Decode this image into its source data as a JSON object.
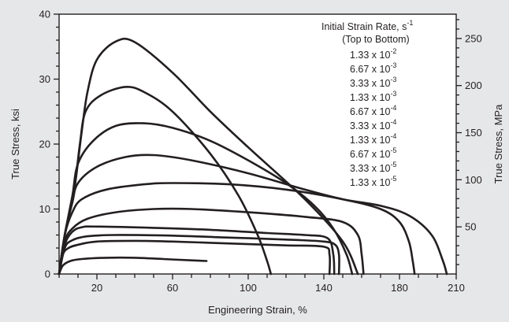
{
  "chart_data": {
    "type": "line",
    "title": "",
    "xlabel": "Engineering Strain, %",
    "ylabel": "True Stress, ksi",
    "ylabel_right": "True Stress, MPa",
    "xlim": [
      0,
      210
    ],
    "ylim": [
      0,
      40
    ],
    "xticks": [
      20,
      60,
      100,
      140,
      180,
      210
    ],
    "yticks": [
      0,
      10,
      20,
      30,
      40
    ],
    "yticks_right": [
      50,
      100,
      150,
      200,
      250
    ],
    "mpa_per_ksi": 6.895,
    "grid": false,
    "legend": {
      "position": "top-right",
      "title_main": "Initial Strain Rate, s",
      "title_sup": "-1",
      "subtitle": "(Top to Bottom)",
      "entries": [
        {
          "mantissa": "1.33 x 10",
          "exponent": "-2"
        },
        {
          "mantissa": "6.67 x 10",
          "exponent": "-3"
        },
        {
          "mantissa": "3.33 x 10",
          "exponent": "-3"
        },
        {
          "mantissa": "1.33 x 10",
          "exponent": "-3"
        },
        {
          "mantissa": "6.67 x 10",
          "exponent": "-4"
        },
        {
          "mantissa": "3.33 x 10",
          "exponent": "-4"
        },
        {
          "mantissa": "1.33 x 10",
          "exponent": "-4"
        },
        {
          "mantissa": "6.67 x 10",
          "exponent": "-5"
        },
        {
          "mantissa": "3.33 x 10",
          "exponent": "-5"
        },
        {
          "mantissa": "1.33 x 10",
          "exponent": "-5"
        }
      ]
    },
    "series": [
      {
        "points": [
          [
            0,
            0
          ],
          [
            3,
            6
          ],
          [
            8,
            13
          ],
          [
            12,
            22
          ],
          [
            15,
            28
          ],
          [
            20,
            33
          ],
          [
            30,
            35.8
          ],
          [
            40,
            35.7
          ],
          [
            60,
            31
          ],
          [
            80,
            25
          ],
          [
            100,
            19.5
          ],
          [
            130,
            11.5
          ],
          [
            150,
            5
          ],
          [
            158,
            0
          ]
        ]
      },
      {
        "points": [
          [
            0,
            0
          ],
          [
            3,
            6
          ],
          [
            8,
            13
          ],
          [
            11,
            20
          ],
          [
            14,
            25
          ],
          [
            22,
            27.5
          ],
          [
            35,
            28.8
          ],
          [
            45,
            28
          ],
          [
            60,
            25
          ],
          [
            80,
            18.5
          ],
          [
            95,
            12
          ],
          [
            105,
            6
          ],
          [
            110,
            2
          ],
          [
            112,
            0
          ]
        ]
      },
      {
        "points": [
          [
            0,
            0
          ],
          [
            3,
            6
          ],
          [
            7,
            12
          ],
          [
            10,
            17
          ],
          [
            18,
            20.5
          ],
          [
            30,
            22.8
          ],
          [
            45,
            23.2
          ],
          [
            60,
            22.5
          ],
          [
            80,
            20.5
          ],
          [
            100,
            17.5
          ],
          [
            120,
            14
          ],
          [
            135,
            10.5
          ],
          [
            145,
            7
          ],
          [
            152,
            3
          ],
          [
            155,
            0
          ]
        ]
      },
      {
        "points": [
          [
            0,
            0
          ],
          [
            3,
            6
          ],
          [
            7,
            11
          ],
          [
            10,
            14
          ],
          [
            20,
            16.5
          ],
          [
            35,
            18
          ],
          [
            50,
            18.3
          ],
          [
            70,
            17.5
          ],
          [
            100,
            15.5
          ],
          [
            130,
            13
          ],
          [
            150,
            11.5
          ],
          [
            170,
            10.5
          ],
          [
            185,
            9
          ],
          [
            197,
            6
          ],
          [
            203,
            2
          ],
          [
            205,
            0
          ]
        ]
      },
      {
        "points": [
          [
            0,
            0
          ],
          [
            3,
            6
          ],
          [
            7,
            9.5
          ],
          [
            12,
            11.5
          ],
          [
            25,
            13
          ],
          [
            45,
            13.8
          ],
          [
            60,
            14
          ],
          [
            90,
            13.8
          ],
          [
            120,
            13
          ],
          [
            150,
            11.5
          ],
          [
            170,
            10
          ],
          [
            180,
            8
          ],
          [
            185,
            5
          ],
          [
            187,
            2
          ],
          [
            188,
            0
          ]
        ]
      },
      {
        "points": [
          [
            0,
            0
          ],
          [
            3,
            5
          ],
          [
            7,
            7
          ],
          [
            15,
            8.5
          ],
          [
            30,
            9.5
          ],
          [
            50,
            10
          ],
          [
            70,
            10
          ],
          [
            100,
            9.5
          ],
          [
            130,
            8.8
          ],
          [
            150,
            8
          ],
          [
            158,
            6
          ],
          [
            160,
            3
          ],
          [
            161,
            0
          ]
        ]
      },
      {
        "points": [
          [
            0,
            0
          ],
          [
            3,
            4.5
          ],
          [
            7,
            6.5
          ],
          [
            12,
            7.2
          ],
          [
            20,
            7.3
          ],
          [
            50,
            7.1
          ],
          [
            80,
            6.8
          ],
          [
            110,
            6.3
          ],
          [
            130,
            6
          ],
          [
            142,
            5.5
          ],
          [
            145,
            3
          ],
          [
            145.5,
            0
          ]
        ]
      },
      {
        "points": [
          [
            0,
            0
          ],
          [
            3,
            4
          ],
          [
            7,
            5.2
          ],
          [
            15,
            5.8
          ],
          [
            30,
            6
          ],
          [
            60,
            5.9
          ],
          [
            90,
            5.6
          ],
          [
            120,
            5.3
          ],
          [
            140,
            5
          ],
          [
            146,
            4.5
          ],
          [
            148,
            3
          ],
          [
            148,
            0
          ]
        ]
      },
      {
        "points": [
          [
            0,
            0
          ],
          [
            2,
            3
          ],
          [
            5,
            4
          ],
          [
            10,
            4.5
          ],
          [
            20,
            5
          ],
          [
            40,
            5.1
          ],
          [
            60,
            5
          ],
          [
            80,
            4.8
          ],
          [
            100,
            4.6
          ],
          [
            120,
            4.4
          ],
          [
            140,
            4.2
          ],
          [
            143,
            3
          ],
          [
            143,
            0
          ]
        ]
      },
      {
        "points": [
          [
            0,
            0
          ],
          [
            2,
            1.3
          ],
          [
            6,
            2
          ],
          [
            12,
            2.3
          ],
          [
            25,
            2.5
          ],
          [
            40,
            2.5
          ],
          [
            55,
            2.3
          ],
          [
            70,
            2.1
          ],
          [
            78,
            2
          ]
        ]
      }
    ]
  }
}
